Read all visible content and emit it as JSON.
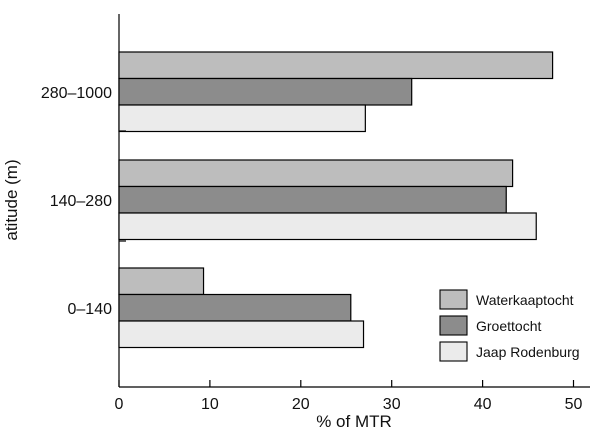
{
  "chart_data": {
    "type": "bar",
    "orientation": "horizontal",
    "categories": [
      "0–140",
      "140–280",
      "280–1000"
    ],
    "series": [
      {
        "name": "Waterkaaptocht",
        "values": [
          9.3,
          43.3,
          47.7
        ],
        "color": "#bdbdbd"
      },
      {
        "name": "Groettocht",
        "values": [
          25.5,
          42.6,
          32.2
        ],
        "color": "#8c8c8c"
      },
      {
        "name": "Jaap Rodenburg",
        "values": [
          26.9,
          45.9,
          27.1
        ],
        "color": "#ebebeb"
      }
    ],
    "xlabel": "% of MTR",
    "ylabel": "atitude (m)",
    "xlim": [
      0,
      52
    ],
    "xticks": [
      "0",
      "10",
      "20",
      "30",
      "40",
      "50"
    ],
    "grid": false,
    "legend_position": "bottom-right"
  }
}
